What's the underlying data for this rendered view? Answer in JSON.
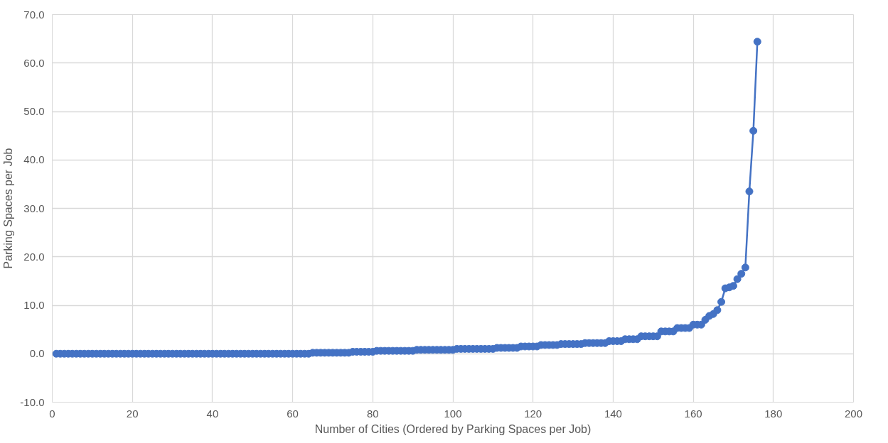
{
  "chart_data": {
    "type": "line",
    "xlabel": "Number of Cities (Ordered by Parking Spaces per Job)",
    "ylabel": "Parking Spaces per Job",
    "x": [
      1,
      2,
      3,
      4,
      5,
      6,
      7,
      8,
      9,
      10,
      11,
      12,
      13,
      14,
      15,
      16,
      17,
      18,
      19,
      20,
      21,
      22,
      23,
      24,
      25,
      26,
      27,
      28,
      29,
      30,
      31,
      32,
      33,
      34,
      35,
      36,
      37,
      38,
      39,
      40,
      41,
      42,
      43,
      44,
      45,
      46,
      47,
      48,
      49,
      50,
      51,
      52,
      53,
      54,
      55,
      56,
      57,
      58,
      59,
      60,
      61,
      62,
      63,
      64,
      65,
      66,
      67,
      68,
      69,
      70,
      71,
      72,
      73,
      74,
      75,
      76,
      77,
      78,
      79,
      80,
      81,
      82,
      83,
      84,
      85,
      86,
      87,
      88,
      89,
      90,
      91,
      92,
      93,
      94,
      95,
      96,
      97,
      98,
      99,
      100,
      101,
      102,
      103,
      104,
      105,
      106,
      107,
      108,
      109,
      110,
      111,
      112,
      113,
      114,
      115,
      116,
      117,
      118,
      119,
      120,
      121,
      122,
      123,
      124,
      125,
      126,
      127,
      128,
      129,
      130,
      131,
      132,
      133,
      134,
      135,
      136,
      137,
      138,
      139,
      140,
      141,
      142,
      143,
      144,
      145,
      146,
      147,
      148,
      149,
      150,
      151,
      152,
      153,
      154,
      155,
      156,
      157,
      158,
      159,
      160,
      161,
      162,
      163,
      164,
      165,
      166,
      167,
      168,
      169,
      170,
      171,
      172,
      173,
      174,
      175,
      176
    ],
    "series": [
      {
        "color": "#4472c4",
        "values": [
          0,
          0,
          0,
          0,
          0,
          0,
          0,
          0,
          0,
          0,
          0,
          0,
          0,
          0,
          0,
          0,
          0,
          0,
          0,
          0,
          0,
          0,
          0,
          0,
          0,
          0,
          0,
          0,
          0,
          0,
          0,
          0,
          0,
          0,
          0,
          0,
          0,
          0,
          0,
          0,
          0,
          0,
          0,
          0,
          0,
          0,
          0,
          0,
          0,
          0,
          0,
          0,
          0,
          0,
          0,
          0,
          0,
          0,
          0,
          0,
          0,
          0,
          0,
          0,
          0.2,
          0.2,
          0.2,
          0.2,
          0.2,
          0.2,
          0.2,
          0.2,
          0.2,
          0.2,
          0.4,
          0.4,
          0.4,
          0.4,
          0.4,
          0.4,
          0.6,
          0.6,
          0.6,
          0.6,
          0.6,
          0.6,
          0.6,
          0.6,
          0.6,
          0.6,
          0.8,
          0.8,
          0.8,
          0.8,
          0.8,
          0.8,
          0.8,
          0.8,
          0.8,
          0.8,
          1.0,
          1.0,
          1.0,
          1.0,
          1.0,
          1.0,
          1.0,
          1.0,
          1.0,
          1.0,
          1.2,
          1.2,
          1.2,
          1.2,
          1.2,
          1.2,
          1.5,
          1.5,
          1.5,
          1.5,
          1.5,
          1.8,
          1.8,
          1.8,
          1.8,
          1.8,
          2.0,
          2.0,
          2.0,
          2.0,
          2.0,
          2.0,
          2.2,
          2.2,
          2.2,
          2.2,
          2.2,
          2.2,
          2.6,
          2.6,
          2.6,
          2.6,
          3.0,
          3.0,
          3.0,
          3.0,
          3.6,
          3.6,
          3.6,
          3.6,
          3.6,
          4.6,
          4.6,
          4.6,
          4.6,
          5.3,
          5.3,
          5.3,
          5.3,
          6.0,
          6.0,
          6.0,
          7.0,
          7.8,
          8.2,
          9.0,
          10.7,
          13.5,
          13.7,
          14.0,
          15.4,
          16.5,
          17.8,
          33.5,
          46.0,
          64.4
        ]
      }
    ],
    "xlim": [
      0,
      200
    ],
    "xticks": [
      0,
      20,
      40,
      60,
      80,
      100,
      120,
      140,
      160,
      180,
      200
    ],
    "ylim": [
      -10,
      70
    ],
    "yticks": [
      {
        "value": -10,
        "label": "-10.0"
      },
      {
        "value": 0,
        "label": "0.0"
      },
      {
        "value": 10,
        "label": "10.0"
      },
      {
        "value": 20,
        "label": "20.0"
      },
      {
        "value": 30,
        "label": "30.0"
      },
      {
        "value": 40,
        "label": "40.0"
      },
      {
        "value": 50,
        "label": "50.0"
      },
      {
        "value": 60,
        "label": "60.0"
      },
      {
        "value": 70,
        "label": "70.0"
      }
    ],
    "grid": true,
    "marker": "circle",
    "line_style": "solid"
  }
}
